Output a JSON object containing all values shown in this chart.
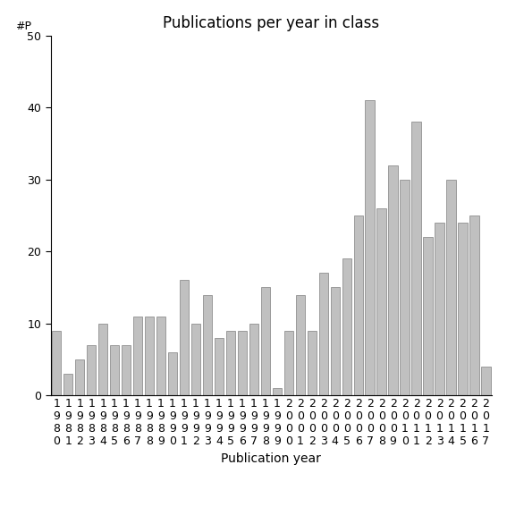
{
  "title": "Publications per year in class",
  "xlabel": "Publication year",
  "ylabel": "#P",
  "years": [
    "1980",
    "1981",
    "1982",
    "1983",
    "1984",
    "1985",
    "1986",
    "1987",
    "1988",
    "1989",
    "1990",
    "1991",
    "1992",
    "1993",
    "1994",
    "1995",
    "1996",
    "1997",
    "1998",
    "1999",
    "2000",
    "2001",
    "2002",
    "2003",
    "2004",
    "2005",
    "2006",
    "2007",
    "2008",
    "2009",
    "2010",
    "2011",
    "2012",
    "2013",
    "2014",
    "2015",
    "2016",
    "2017"
  ],
  "values": [
    9,
    3,
    5,
    7,
    10,
    7,
    7,
    11,
    11,
    11,
    6,
    16,
    10,
    14,
    8,
    9,
    9,
    10,
    15,
    1,
    9,
    14,
    9,
    17,
    15,
    19,
    25,
    41,
    26,
    32,
    30,
    38,
    22,
    24,
    30,
    24,
    25,
    4
  ],
  "bar_color": "#c0c0c0",
  "bar_edgecolor": "#808080",
  "ylim": [
    0,
    50
  ],
  "yticks": [
    0,
    10,
    20,
    30,
    40,
    50
  ],
  "background_color": "#ffffff",
  "title_fontsize": 12,
  "xlabel_fontsize": 10,
  "tick_fontsize": 9
}
